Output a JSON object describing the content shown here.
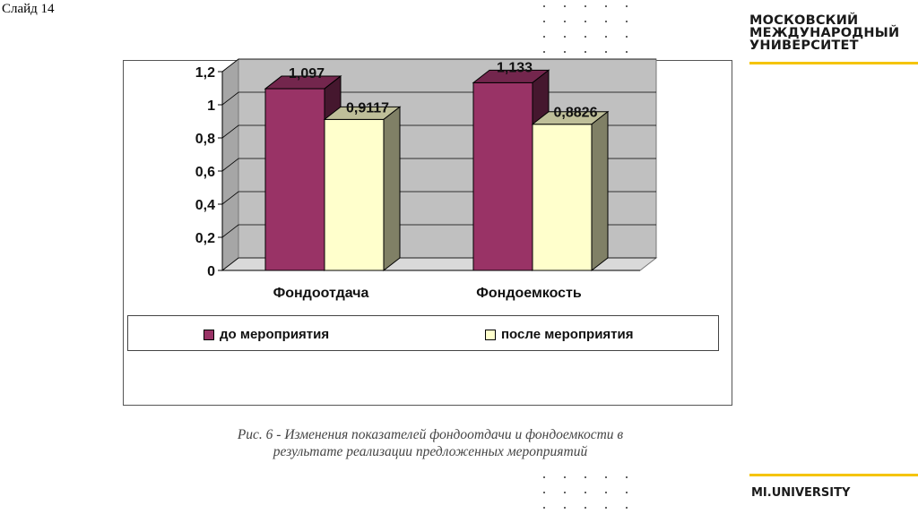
{
  "slide": {
    "label": "Слайд 14"
  },
  "brand": {
    "lines": [
      "МОСКОВСКИЙ",
      "МЕЖДУНАРОДНЫЙ",
      "УНИВЕРСИТЕТ"
    ],
    "bottom": "MI.UNIVERSITY",
    "accent_color": "#f5c400"
  },
  "chart_data": {
    "type": "bar",
    "categories": [
      "Фондоотдача",
      "Фондоемкость"
    ],
    "series": [
      {
        "name": "до мероприятия",
        "values": [
          1.097,
          1.133
        ],
        "labels": [
          "1,097",
          "1,133"
        ],
        "color": "#993366"
      },
      {
        "name": "после мероприятия",
        "values": [
          0.9117,
          0.8826
        ],
        "labels": [
          "0,9117",
          "0,8826"
        ],
        "color": "#ffffcc"
      }
    ],
    "ylim": [
      0,
      1.2
    ],
    "yticks": [
      0,
      0.2,
      0.4,
      0.6,
      0.8,
      1,
      1.2
    ],
    "ytick_labels": [
      "0",
      "0,2",
      "0,4",
      "0,6",
      "0,8",
      "1",
      "1,2"
    ],
    "grid": true,
    "legend_position": "bottom",
    "wall_color": "#c0c0c0"
  },
  "caption": {
    "line1": "Рис. 6 - Изменения показателей фондоотдачи и фондоемкости в",
    "line2": "результате реализации предложенных  мероприятий"
  }
}
